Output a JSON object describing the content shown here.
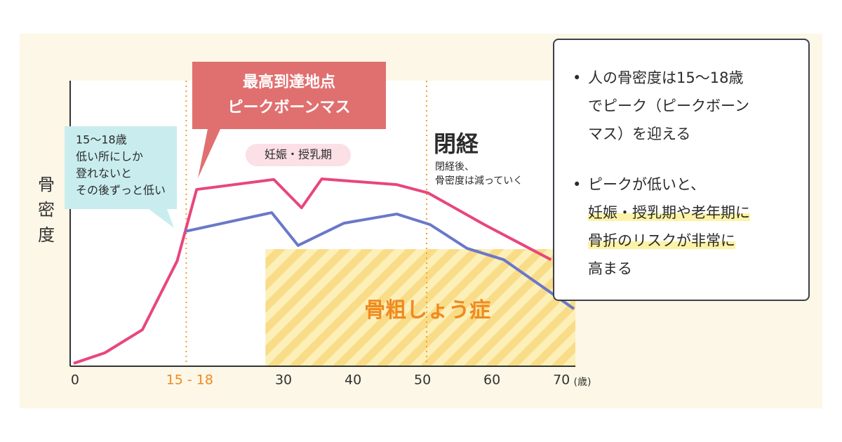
{
  "chart_data": {
    "type": "line",
    "y_label": "骨密度",
    "x_unit": "(歳)",
    "xlim": [
      -0.7,
      72
    ],
    "ylim": [
      0,
      100
    ],
    "xticks": [
      0,
      {
        "value": 16.5,
        "label": "15 - 18"
      },
      30,
      40,
      50,
      60,
      70
    ],
    "series": [
      {
        "color": "#e8467c",
        "x": [
          -0.2,
          4.3,
          9.7,
          14.7,
          17.5,
          28.6,
          32.6,
          35.5,
          46.3,
          50.8,
          58.9,
          68.5
        ],
        "values": [
          1,
          4.7,
          12.8,
          36.9,
          61.9,
          65.4,
          55.5,
          65.6,
          63.6,
          60.7,
          49.6,
          37.3
        ]
      },
      {
        "color": "#6a78c8",
        "x": [
          15.8,
          28.3,
          32.1,
          38.7,
          46.3,
          51.1,
          56.4,
          61.7,
          71.8
        ],
        "values": [
          47.2,
          53.8,
          42.3,
          50.1,
          53.3,
          49.6,
          41.3,
          37.3,
          20.1
        ]
      }
    ],
    "vlines": [
      16,
      50.6
    ],
    "zone": {
      "label": "骨粗しょう症",
      "x": [
        27.4,
        72
      ],
      "y": [
        0,
        41
      ]
    },
    "annotations": {
      "peak": [
        "最高到達地点",
        "ピークボーンマス"
      ],
      "low": [
        "15〜18歳",
        "低い所にしか",
        "登れないと",
        "その後ずっと低い"
      ],
      "pregnancy": "妊娠・授乳期",
      "menopause": "閉経",
      "menopause_note": [
        "閉経後、",
        "骨密度は減っていく"
      ]
    }
  },
  "panel": {
    "bullets": [
      [
        "人の骨密度は15〜18歳",
        "でピーク（ピークボーン",
        "マス）を迎える"
      ],
      [
        "ピークが低いと、",
        "妊娠・授乳期や老年期に",
        "骨折のリスクが非常に",
        "高まる"
      ]
    ]
  }
}
